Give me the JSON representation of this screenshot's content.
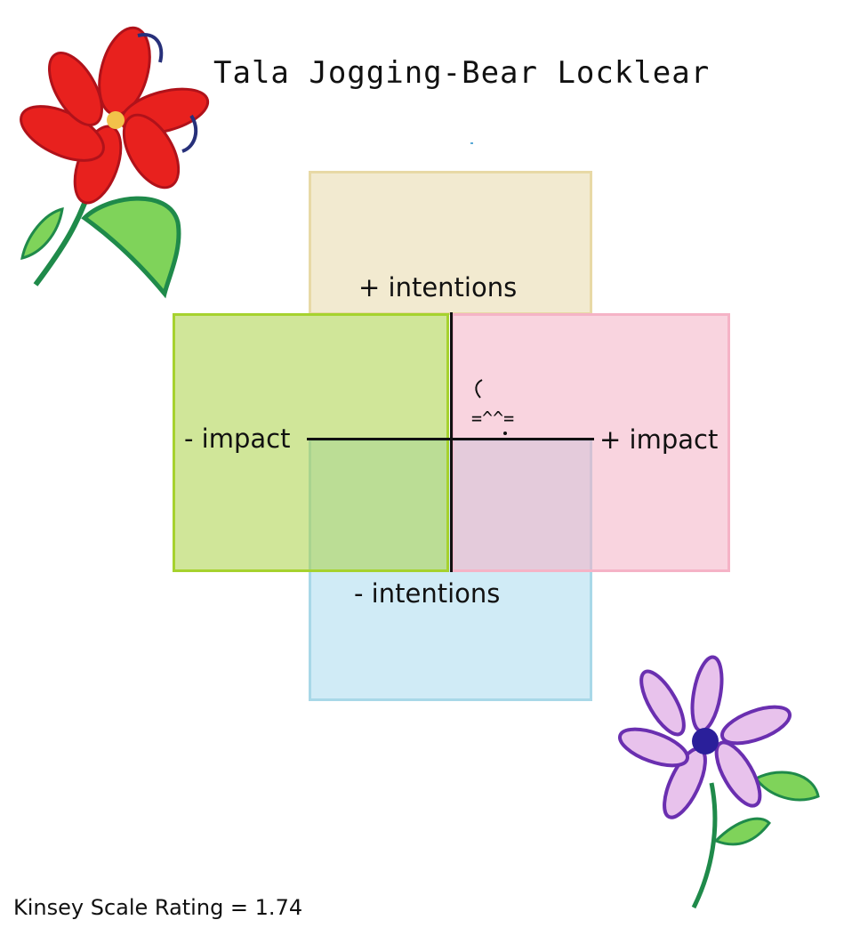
{
  "header": {
    "title": "Tala Jogging-Bear Locklear"
  },
  "quadrant_chart": {
    "labels": {
      "top": "+ intentions",
      "bottom": "- intentions",
      "left": "- impact",
      "right": "+ impact"
    },
    "marker": {
      "face": "=^^=",
      "quadrant": "+ intentions / + impact"
    },
    "colors": {
      "top": "#e8d9a6",
      "bottom": "#a8d8e8",
      "left": "#a6d22e",
      "right": "#f5b3c6"
    }
  },
  "footer": {
    "kinsey_rating": "Kinsey Scale Rating = 1.74"
  },
  "decorations": {
    "flower_top_left": {
      "color": "#e01c1c",
      "icon": "red-flower-icon"
    },
    "flower_bottom_right": {
      "color": "#8a3fc2",
      "icon": "purple-flower-icon"
    }
  }
}
